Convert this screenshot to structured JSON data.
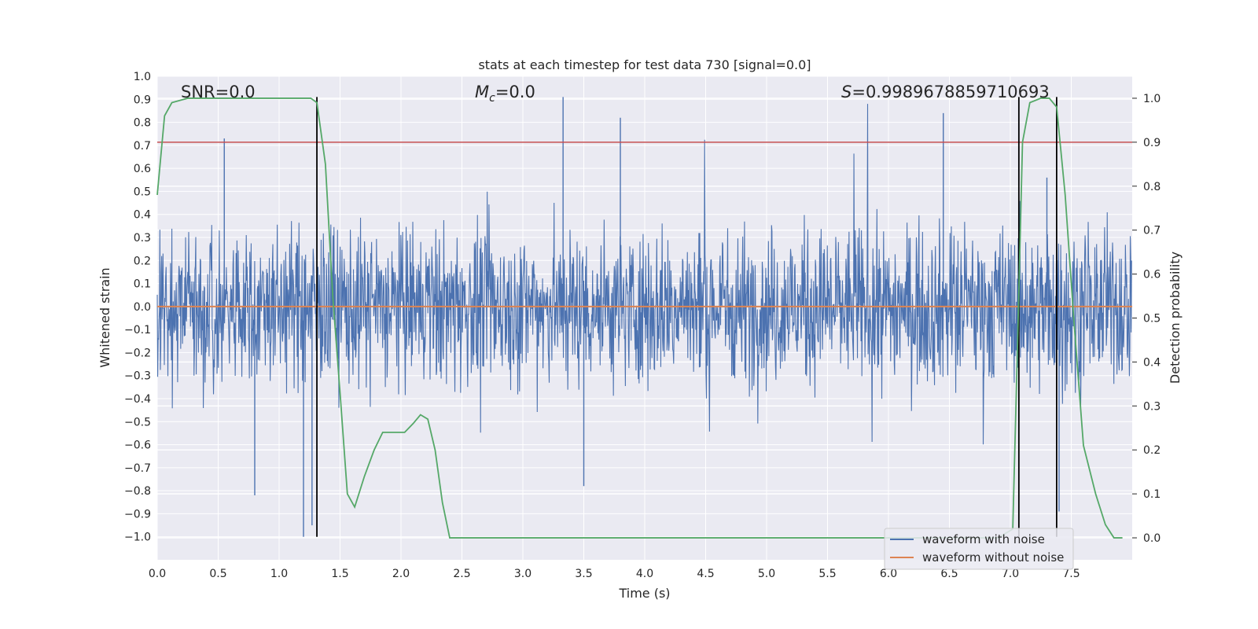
{
  "chart_data": {
    "type": "line",
    "title": "stats at each timestep for test data 730 [signal=0.0]",
    "xlabel": "Time (s)",
    "ylabel": "Whitened strain",
    "y2label": "Detection probability",
    "xlim": [
      0.0,
      8.0
    ],
    "ylim": [
      -1.1,
      1.0
    ],
    "y2lim": [
      -0.05,
      1.05
    ],
    "xticks": [
      "0.0",
      "0.5",
      "1.0",
      "1.5",
      "2.0",
      "2.5",
      "3.0",
      "3.5",
      "4.0",
      "4.5",
      "5.0",
      "5.5",
      "6.0",
      "6.5",
      "7.0",
      "7.5"
    ],
    "yticks": [
      "1.0",
      "0.9",
      "0.8",
      "0.7",
      "0.6",
      "0.5",
      "0.4",
      "0.3",
      "0.2",
      "0.1",
      "0.0",
      "−0.1",
      "−0.2",
      "−0.3",
      "−0.4",
      "−0.5",
      "−0.6",
      "−0.7",
      "−0.8",
      "−0.9",
      "−1.0"
    ],
    "y2ticks": [
      "1.0",
      "0.9",
      "0.8",
      "0.7",
      "0.6",
      "0.5",
      "0.4",
      "0.3",
      "0.2",
      "0.1",
      "0.0"
    ],
    "annotations": {
      "snr": "SNR=0.0",
      "mc": "=0.0",
      "mc_symbol": "M",
      "mc_sub": "c",
      "s": "=0.9989678859710693",
      "s_symbol": "S"
    },
    "legend": {
      "position": "lower-right",
      "entries": [
        "waveform with noise",
        "waveform without noise"
      ]
    },
    "colors": {
      "noisy": "#4c72b0",
      "clean": "#dd8452",
      "probability": "#55a868",
      "threshold": "#c44e52",
      "marker": "#000000",
      "background": "#eaeaf2",
      "grid": "#ffffff"
    },
    "series": [
      {
        "name": "waveform with noise",
        "note": "dense noisy strain, spans roughly -0.55..0.5 with spikes to +0.9 and -1.0"
      },
      {
        "name": "waveform without noise",
        "x": [
          0.0,
          8.0
        ],
        "y": [
          0.0,
          0.0
        ]
      },
      {
        "name": "detection probability",
        "axis": "y2",
        "x": [
          0.0,
          0.06,
          0.12,
          0.25,
          0.5,
          0.8,
          1.0,
          1.2,
          1.26,
          1.31,
          1.38,
          1.44,
          1.5,
          1.56,
          1.62,
          1.7,
          1.78,
          1.85,
          1.95,
          2.03,
          2.1,
          2.16,
          2.22,
          2.28,
          2.34,
          2.4,
          2.5,
          3.0,
          4.0,
          5.0,
          6.0,
          6.5,
          6.9,
          7.02,
          7.06,
          7.1,
          7.16,
          7.25,
          7.32,
          7.38,
          7.45,
          7.52,
          7.6,
          7.7,
          7.78,
          7.85,
          7.92
        ],
        "y": [
          0.78,
          0.96,
          0.99,
          1.0,
          1.0,
          1.0,
          1.0,
          1.0,
          1.0,
          0.99,
          0.85,
          0.55,
          0.33,
          0.1,
          0.07,
          0.14,
          0.2,
          0.24,
          0.24,
          0.24,
          0.26,
          0.28,
          0.27,
          0.2,
          0.08,
          0.0,
          0.0,
          0.0,
          0.0,
          0.0,
          0.0,
          0.0,
          0.0,
          0.02,
          0.45,
          0.9,
          0.99,
          1.0,
          1.0,
          0.98,
          0.78,
          0.5,
          0.21,
          0.1,
          0.03,
          0.0,
          0.0
        ]
      }
    ],
    "threshold": {
      "axis": "y2",
      "value": 0.9
    },
    "markers_x": [
      1.31,
      7.07,
      7.38
    ],
    "markers_range": [
      -1.0,
      0.91
    ],
    "noise_spikes": [
      [
        0.55,
        0.73
      ],
      [
        1.2,
        -1.0
      ],
      [
        1.27,
        -0.95
      ],
      [
        3.33,
        0.91
      ],
      [
        3.8,
        0.82
      ],
      [
        6.45,
        0.84
      ],
      [
        7.3,
        0.56
      ],
      [
        7.4,
        -0.89
      ],
      [
        0.8,
        -0.82
      ],
      [
        3.5,
        -0.78
      ]
    ]
  }
}
